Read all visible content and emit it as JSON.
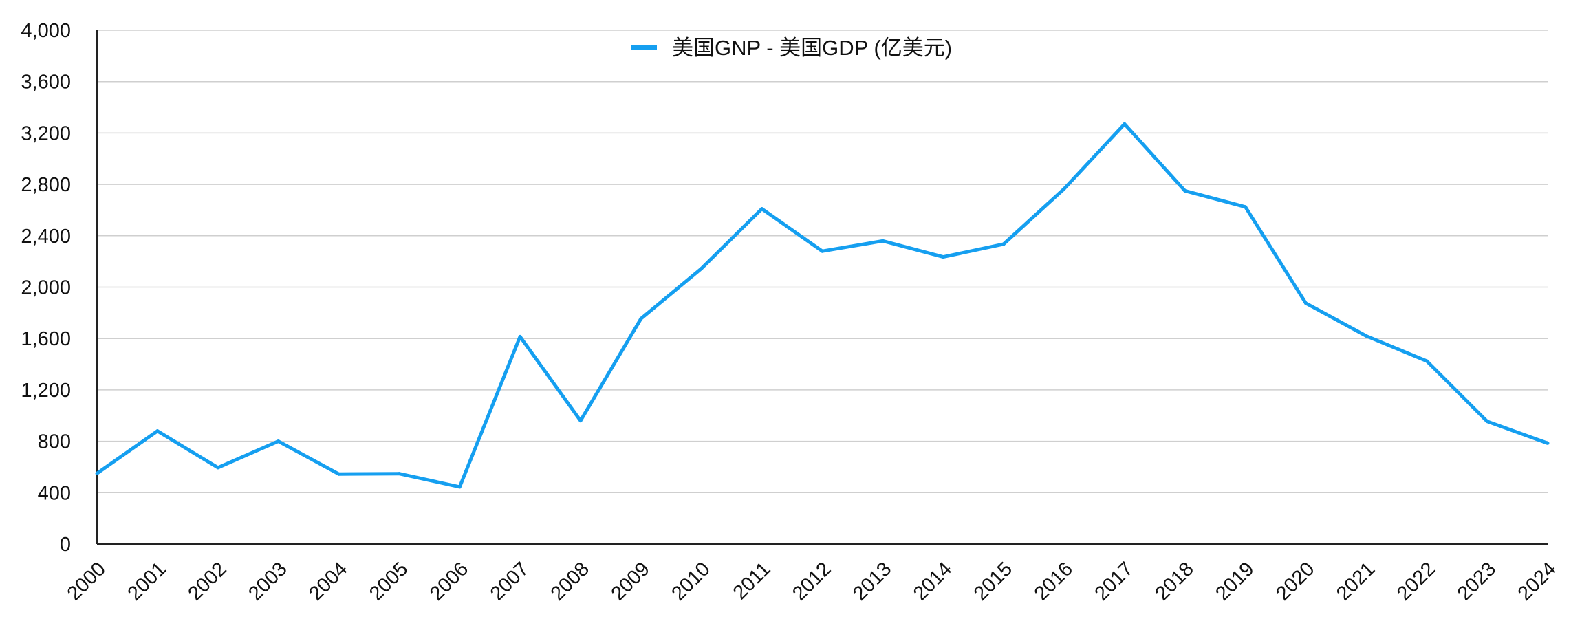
{
  "chart_data": {
    "type": "line",
    "title": "",
    "xlabel": "",
    "ylabel": "",
    "ylim": [
      0,
      4000
    ],
    "yticks": [
      0,
      400,
      800,
      1200,
      1600,
      2000,
      2400,
      2800,
      3200,
      3600,
      4000
    ],
    "ytick_labels": [
      "0",
      "400",
      "800",
      "1,200",
      "1,600",
      "2,000",
      "2,400",
      "2,800",
      "3,200",
      "3,600",
      "4,000"
    ],
    "grid": true,
    "legend_position": "top-center",
    "categories": [
      "2000",
      "2001",
      "2002",
      "2003",
      "2004",
      "2005",
      "2006",
      "2007",
      "2008",
      "2009",
      "2010",
      "2011",
      "2012",
      "2013",
      "2014",
      "2015",
      "2016",
      "2017",
      "2018",
      "2019",
      "2020",
      "2021",
      "2022",
      "2023",
      "2024"
    ],
    "series": [
      {
        "name": "美国GNP - 美国GDP (亿美元)",
        "color": "#159ff0",
        "values": [
          550,
          880,
          595,
          800,
          545,
          548,
          445,
          1615,
          960,
          1755,
          2145,
          2610,
          2280,
          2360,
          2235,
          2335,
          2765,
          3270,
          2750,
          2625,
          1875,
          1620,
          1425,
          955,
          785
        ]
      }
    ]
  }
}
